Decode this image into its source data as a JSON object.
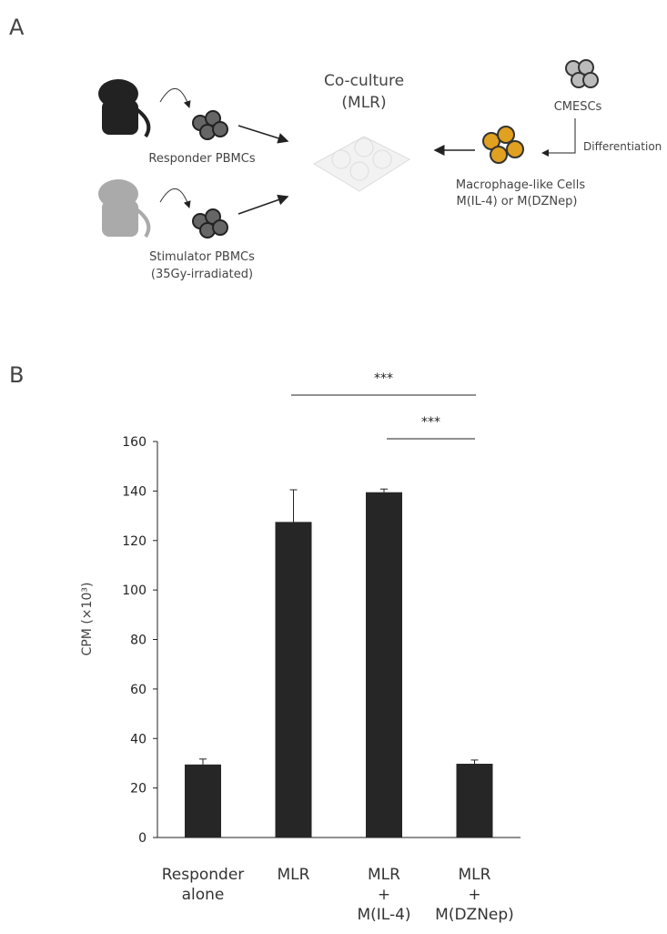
{
  "panel_a": {
    "label": "A",
    "coculture": "Co-culture",
    "mlr": "(MLR)",
    "responder": "Responder PBMCs",
    "stimulator": "Stimulator PBMCs",
    "irradiated": "(35Gy-irradiated)",
    "cmescs": "CMESCs",
    "differentiation": "Differentiation",
    "macrophage": "Macrophage-like Cells",
    "macrophage_types": "M(IL-4) or M(DZNep)"
  },
  "chart_data": {
    "type": "bar",
    "panel_label": "B",
    "ylabel": "CPM (×10³)",
    "categories": [
      "Responder\nalone",
      "MLR",
      "MLR\n+\nM(IL-4)",
      "MLR\n+\nM(DZNep)"
    ],
    "values": [
      29.5,
      127.5,
      139.5,
      29.8
    ],
    "errors": [
      2.2,
      13,
      1.3,
      1.5
    ],
    "color": "#262626",
    "ylim": [
      0,
      160
    ],
    "yticks": [
      0,
      20,
      40,
      60,
      80,
      100,
      120,
      140,
      160
    ],
    "significance": [
      "***",
      "***"
    ]
  }
}
